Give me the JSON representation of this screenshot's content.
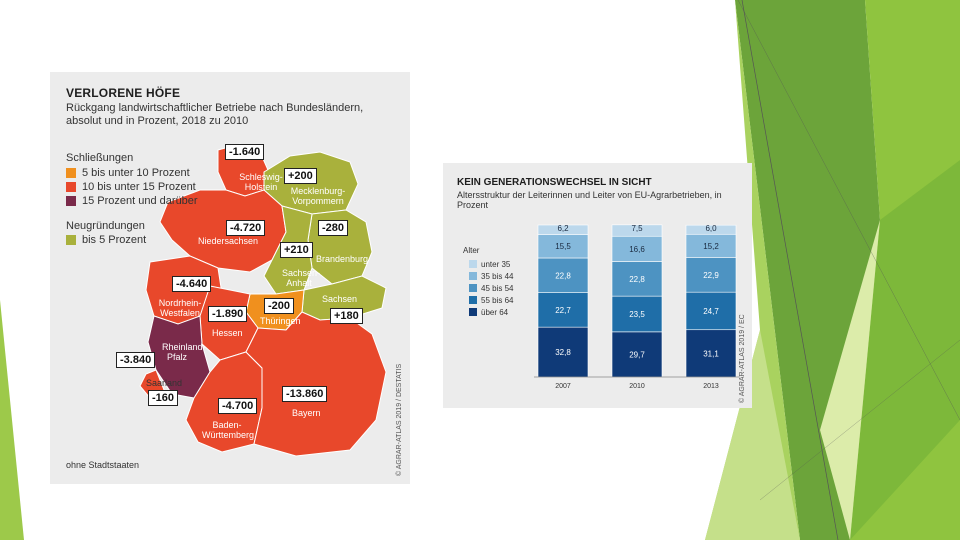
{
  "map": {
    "title": "VERLORENE HÖFE",
    "subtitle": "Rückgang landwirtschaftlicher Betriebe nach Bundesländern, absolut und in Prozent, 2018 zu 2010",
    "legend": {
      "closures_title": "Schließungen",
      "closures": [
        {
          "label": "5 bis unter 10 Prozent",
          "color": "#f0901e"
        },
        {
          "label": "10 bis unter 15 Prozent",
          "color": "#e8482b"
        },
        {
          "label": "15 Prozent und darüber",
          "color": "#7a2a4a"
        }
      ],
      "new_title": "Neugründungen",
      "new": [
        {
          "label": "bis 5 Prozent",
          "color": "#a9b13c"
        }
      ]
    },
    "regions": [
      {
        "name": "Schleswig-Holstein",
        "value": "-1.640"
      },
      {
        "name": "Mecklenburg-Vorpommern",
        "value": "+200"
      },
      {
        "name": "Niedersachsen",
        "value": "-4.720"
      },
      {
        "name": "Brandenburg",
        "value": "-280"
      },
      {
        "name": "Sachsen-Anhalt",
        "value": "+210"
      },
      {
        "name": "Nordrhein-Westfalen",
        "value": "-4.640"
      },
      {
        "name": "Sachsen",
        "value": "+180"
      },
      {
        "name": "Thüringen",
        "value": "-200"
      },
      {
        "name": "Hessen",
        "value": "-1.890"
      },
      {
        "name": "Rheinland-Pfalz",
        "value": "-3.840"
      },
      {
        "name": "Saarland",
        "value": "-160"
      },
      {
        "name": "Bayern",
        "value": "-13.860"
      },
      {
        "name": "Baden-Württemberg",
        "value": "-4.700"
      }
    ],
    "region_labels": {
      "sh": "Schleswig-Holstein",
      "mv": "Mecklenburg-Vorpommern",
      "ni": "Niedersachsen",
      "bb": "Brandenburg",
      "st": "Sachsen-Anhalt",
      "nw": "Nordrhein-Westfalen",
      "sn": "Sachsen",
      "th": "Thüringen",
      "he": "Hessen",
      "rp": "Rheinland-Pfalz",
      "sl": "Saarland",
      "by": "Bayern",
      "bw": "Baden-Württemberg"
    },
    "footnote": "ohne Stadtstaaten",
    "credit": "© AGRAR-ATLAS 2019 / DESTATIS"
  },
  "chart": {
    "title": "KEIN GENERATIONSWECHSEL IN SICHT",
    "subtitle": "Altersstruktur der Leiterinnen und Leiter von EU-Agrarbetrieben, in Prozent",
    "credit": "© AGRAR-ATLAS 2019 / EC",
    "legend_title": "Alter"
  },
  "chart_data": {
    "type": "bar",
    "stacked": true,
    "categories": [
      "2007",
      "2010",
      "2013"
    ],
    "series": [
      {
        "name": "über 64",
        "values": [
          32.8,
          29.7,
          31.1
        ],
        "labels": [
          "32,8",
          "29,7",
          "31,1"
        ],
        "color": "#0f3a78"
      },
      {
        "name": "55 bis 64",
        "values": [
          22.7,
          23.5,
          24.7
        ],
        "labels": [
          "22,7",
          "23,5",
          "24,7"
        ],
        "color": "#1f6ea8"
      },
      {
        "name": "45 bis 54",
        "values": [
          22.8,
          22.8,
          22.9
        ],
        "labels": [
          "22,8",
          "22,8",
          "22,9"
        ],
        "color": "#4d93c2"
      },
      {
        "name": "35 bis 44",
        "values": [
          15.5,
          16.6,
          15.2
        ],
        "labels": [
          "15,5",
          "16,6",
          "15,2"
        ],
        "color": "#84b8db"
      },
      {
        "name": "unter 35",
        "values": [
          6.2,
          7.5,
          6.0
        ],
        "labels": [
          "6,2",
          "7,5",
          "6,0"
        ],
        "color": "#bcd8ec"
      }
    ],
    "ylim": [
      0,
      100
    ]
  },
  "theme": {
    "green_dark": "#4f8f2c",
    "green_mid": "#7ab33c",
    "green_light": "#a6cd57",
    "green_pale": "#d9ea9f"
  }
}
